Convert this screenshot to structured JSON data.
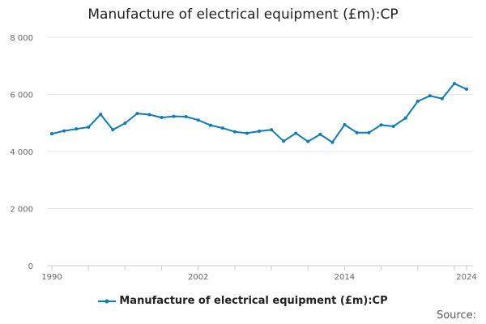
{
  "chart_data": {
    "type": "line",
    "title": "Manufacture of electrical equipment (£m):CP",
    "xlabel": "",
    "ylabel": "",
    "xlim": [
      1990,
      2024
    ],
    "ylim": [
      0,
      8000
    ],
    "y_ticks": [
      0,
      2000,
      4000,
      6000,
      8000
    ],
    "y_tick_labels": [
      "0",
      "2 000",
      "4 000",
      "6 000",
      "8 000"
    ],
    "x_ticks": [
      1990,
      2002,
      2014,
      2024
    ],
    "x_tick_labels": [
      "1990",
      "2002",
      "2014",
      "2024"
    ],
    "grid": "horizontal",
    "legend_position": "bottom",
    "x": [
      1990,
      1991,
      1992,
      1993,
      1994,
      1995,
      1996,
      1997,
      1998,
      1999,
      2000,
      2001,
      2002,
      2003,
      2004,
      2005,
      2006,
      2007,
      2008,
      2009,
      2010,
      2011,
      2012,
      2013,
      2014,
      2015,
      2016,
      2017,
      2018,
      2019,
      2020,
      2021,
      2022,
      2023,
      2024
    ],
    "series": [
      {
        "name": "Manufacture of electrical equipment (£m):CP",
        "color": "#0f7ab8",
        "values": [
          4620,
          4720,
          4790,
          4850,
          5300,
          4760,
          4990,
          5330,
          5290,
          5190,
          5230,
          5220,
          5100,
          4920,
          4820,
          4690,
          4640,
          4710,
          4760,
          4360,
          4640,
          4350,
          4600,
          4320,
          4940,
          4660,
          4660,
          4930,
          4880,
          5170,
          5760,
          5950,
          5850,
          6380,
          6180
        ]
      }
    ]
  },
  "source_label": "Source:"
}
